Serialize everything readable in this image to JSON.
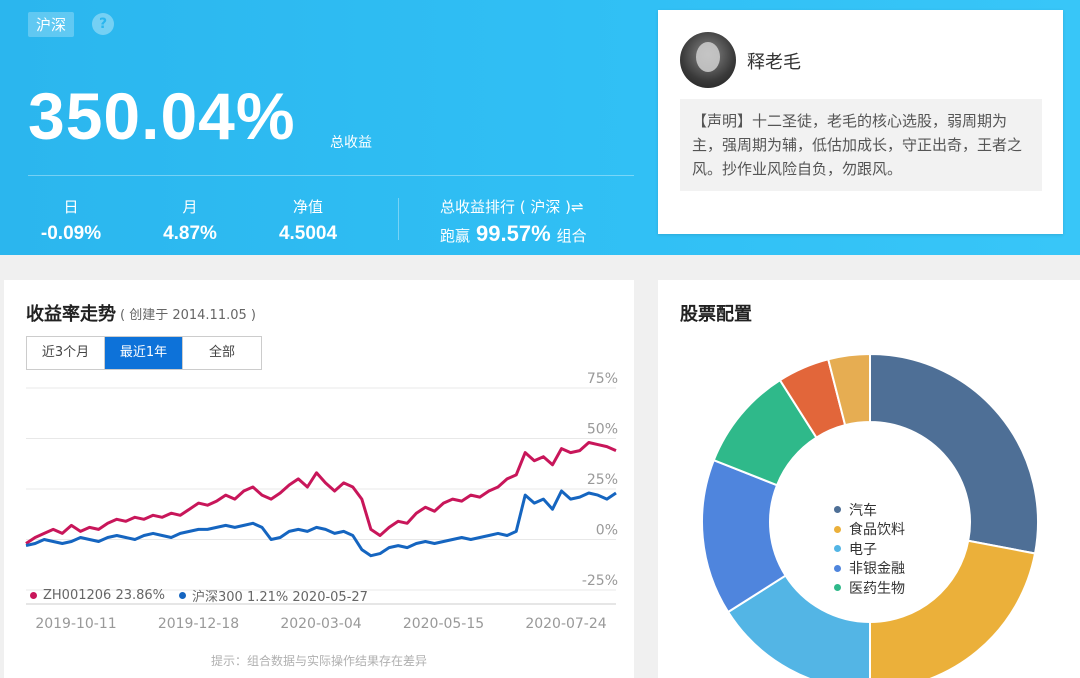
{
  "header": {
    "market_tag": "沪深",
    "help_icon": "?",
    "total_return": "350.04%",
    "total_return_label": "总收益",
    "stats": [
      {
        "label": "日",
        "value": "-0.09%"
      },
      {
        "label": "月",
        "value": "4.87%"
      },
      {
        "label": "净值",
        "value": "4.5004"
      }
    ],
    "rank_label": "总收益排行 ( 沪深 )⇌",
    "rank_prefix": "跑赢",
    "rank_value": "99.57%",
    "rank_suffix": "组合"
  },
  "profile": {
    "name": "释老毛",
    "statement": "【声明】十二圣徒，老毛的核心选股，弱周期为主，强周期为辅，低估加成长，守正出奇，王者之风。抄作业风险自负，勿跟风。"
  },
  "trend": {
    "title": "收益率走势",
    "created": "( 创建于 2014.11.05 )",
    "tabs": [
      "近3个月",
      "最近1年",
      "全部"
    ],
    "active_tab": 1,
    "legend": [
      {
        "label": "ZH001206 23.86%",
        "color": "#c8165a"
      },
      {
        "label": "沪深300 1.21% 2020-05-27",
        "color": "#1565c0"
      }
    ],
    "note": "提示：组合数据与实际操作结果存在差异"
  },
  "chart_data": {
    "type": "line",
    "x_tick_labels": [
      "2019-10-11",
      "2019-12-18",
      "2020-03-04",
      "2020-05-15",
      "2020-07-24"
    ],
    "y_tick_labels": [
      "75%",
      "50%",
      "25%",
      "0%",
      "-25%"
    ],
    "ylim": [
      -25,
      75
    ],
    "series": [
      {
        "name": "ZH001206",
        "color": "#c8165a",
        "values": [
          -2,
          1,
          3,
          5,
          3,
          7,
          4,
          6,
          5,
          8,
          10,
          9,
          11,
          10,
          12,
          11,
          13,
          12,
          15,
          18,
          17,
          19,
          22,
          20,
          24,
          26,
          22,
          20,
          23,
          27,
          30,
          26,
          33,
          28,
          24,
          28,
          26,
          20,
          5,
          2,
          6,
          9,
          8,
          13,
          16,
          14,
          18,
          20,
          19,
          22,
          21,
          24,
          26,
          30,
          32,
          43,
          39,
          41,
          37,
          45,
          43,
          44,
          48,
          47,
          46,
          44
        ]
      },
      {
        "name": "沪深300",
        "color": "#1565c0",
        "values": [
          -3,
          -2,
          0,
          -1,
          -2,
          -1,
          1,
          0,
          -1,
          1,
          2,
          1,
          0,
          2,
          3,
          2,
          1,
          3,
          4,
          5,
          5,
          6,
          7,
          6,
          7,
          8,
          6,
          0,
          1,
          4,
          5,
          4,
          6,
          5,
          3,
          4,
          2,
          -5,
          -8,
          -7,
          -4,
          -3,
          -4,
          -2,
          -1,
          -2,
          -1,
          0,
          1,
          0,
          1,
          2,
          3,
          2,
          4,
          22,
          18,
          20,
          15,
          24,
          20,
          21,
          23,
          22,
          20,
          23
        ]
      }
    ]
  },
  "allocation": {
    "title": "股票配置",
    "items": [
      {
        "label": "汽车",
        "value": 28,
        "color": "#4e6f96"
      },
      {
        "label": "食品饮料",
        "value": 22,
        "color": "#ebb03a"
      },
      {
        "label": "电子",
        "value": 16,
        "color": "#53b5e5"
      },
      {
        "label": "非银金融",
        "value": 15,
        "color": "#4f85dd"
      },
      {
        "label": "医药生物",
        "value": 10,
        "color": "#2fb98a"
      },
      {
        "value": 5,
        "color": "#e2663a"
      },
      {
        "value": 4,
        "color": "#e6ad52"
      }
    ]
  }
}
